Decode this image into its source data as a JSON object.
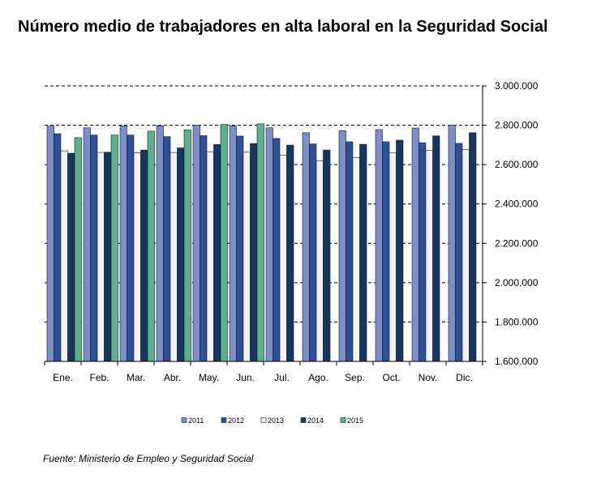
{
  "chart_data": {
    "type": "bar",
    "title": "Número medio de trabajadores en alta laboral en la Seguridad Social",
    "xlabel": "",
    "ylabel": "",
    "categories": [
      "Ene.",
      "Feb.",
      "Mar.",
      "Abr.",
      "May.",
      "Jun.",
      "Jul.",
      "Ago.",
      "Sep.",
      "Oct.",
      "Nov.",
      "Dic."
    ],
    "series": [
      {
        "name": "2011",
        "color": "#7b8fc8",
        "values": [
          2795,
          2787,
          2797,
          2797,
          2800,
          2797,
          2787,
          2762,
          2773,
          2778,
          2786,
          2800
        ]
      },
      {
        "name": "2012",
        "color": "#2e4f9a",
        "values": [
          2757,
          2750,
          2750,
          2742,
          2747,
          2745,
          2733,
          2705,
          2716,
          2716,
          2711,
          2708
        ]
      },
      {
        "name": "2013",
        "color": "#f2f2f2",
        "values": [
          2670,
          2662,
          2660,
          2662,
          2665,
          2663,
          2648,
          2620,
          2636,
          2660,
          2673,
          2676
        ]
      },
      {
        "name": "2014",
        "color": "#13375e",
        "values": [
          2658,
          2663,
          2674,
          2685,
          2702,
          2707,
          2699,
          2674,
          2703,
          2724,
          2746,
          2762
        ]
      },
      {
        "name": "2015",
        "color": "#5bb08e",
        "values": [
          2737,
          2750,
          2770,
          2777,
          2804,
          2807,
          null,
          null,
          null,
          null,
          null,
          null
        ]
      }
    ],
    "ylim": [
      1600,
      3000
    ],
    "yticks": [
      1600,
      1800,
      2000,
      2200,
      2400,
      2600,
      2800,
      3000
    ],
    "ytick_labels": [
      "1.600.000",
      "1.800.000",
      "2.000.000",
      "2.200.000",
      "2.400.000",
      "2.600.000",
      "2.800.000",
      "3.000.000"
    ],
    "grid": "horizontal dashed",
    "legend_position": "bottom"
  },
  "source": "Fuente: Ministerio de Empleo y Seguridad Social"
}
